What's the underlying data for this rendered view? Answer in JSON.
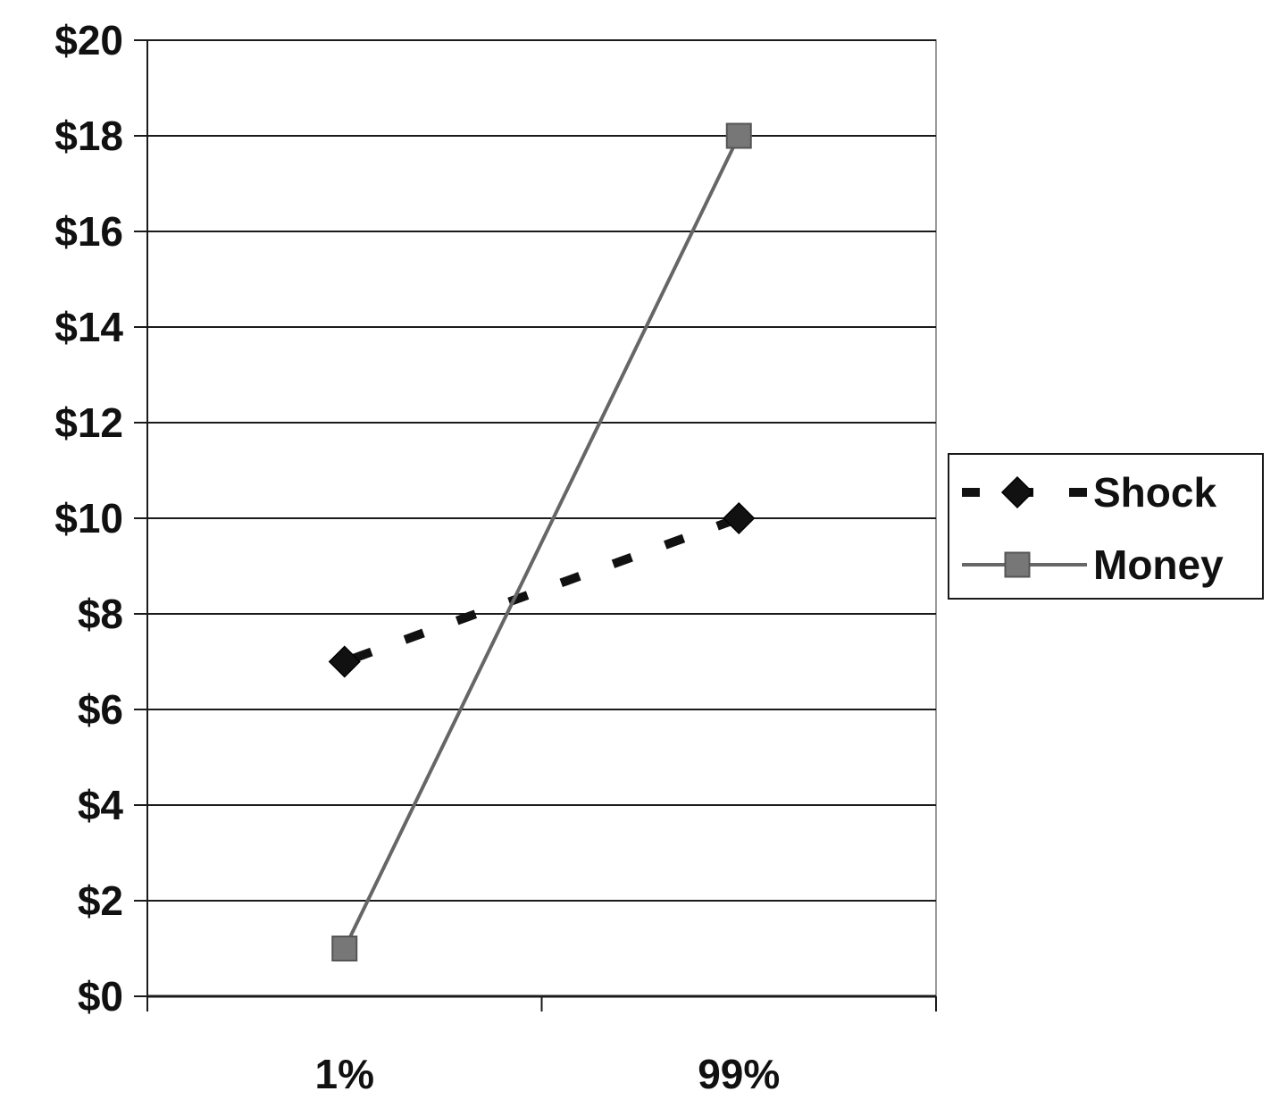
{
  "chart_data": {
    "type": "line",
    "categories": [
      "1%",
      "99%"
    ],
    "series": [
      {
        "name": "Shock",
        "values": [
          7,
          10
        ],
        "color": "#111111",
        "line_style": "dashed",
        "marker": "diamond"
      },
      {
        "name": "Money",
        "values": [
          1,
          18
        ],
        "color": "#666666",
        "line_style": "solid",
        "marker": "square"
      }
    ],
    "y_ticks": [
      "$0",
      "$2",
      "$4",
      "$6",
      "$8",
      "$10",
      "$12",
      "$14",
      "$16",
      "$18",
      "$20"
    ],
    "ylim": [
      0,
      20
    ],
    "y_step": 2,
    "grid": true,
    "legend_position": "right",
    "title": "",
    "xlabel": "",
    "ylabel": ""
  }
}
